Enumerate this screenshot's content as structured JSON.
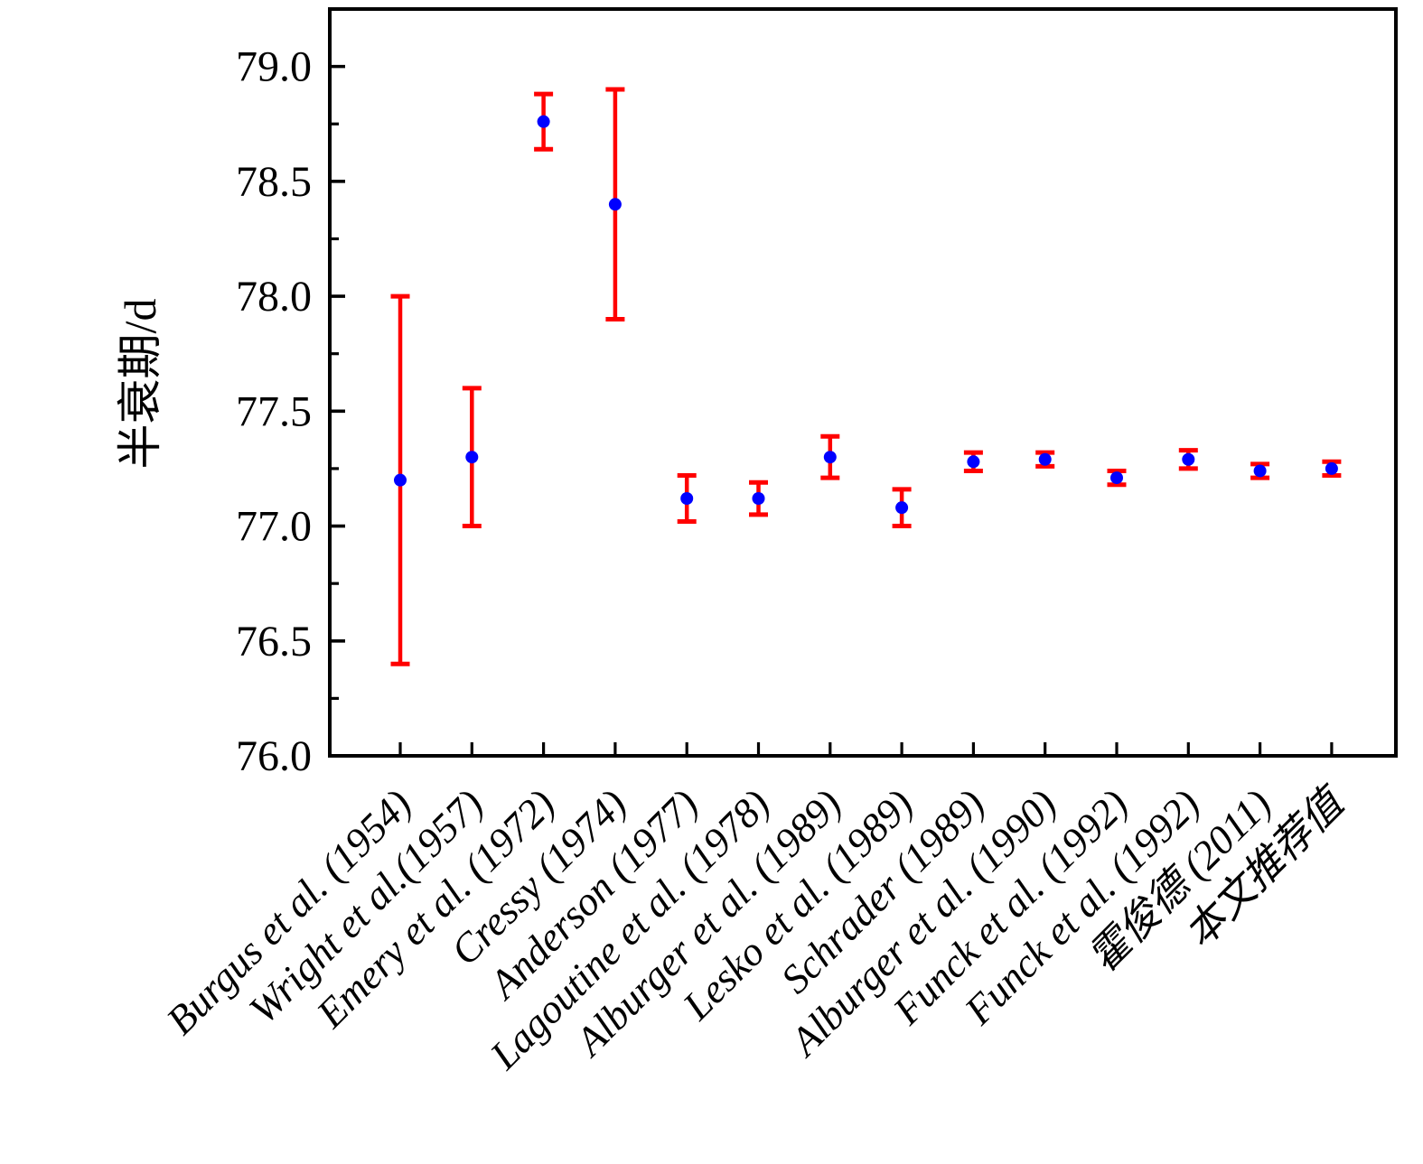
{
  "chart_data": {
    "type": "scatter",
    "title": "",
    "xlabel": "",
    "ylabel": "半衰期/d",
    "grid": false,
    "legend": null,
    "ylim": [
      76.0,
      79.25
    ],
    "yticks": [
      "76.0",
      "76.5",
      "77.0",
      "77.5",
      "78.0",
      "78.5",
      "79.0"
    ],
    "yticks_minor": [
      76.25,
      76.75,
      77.25,
      77.75,
      78.25,
      78.75
    ],
    "categories": [
      "Burgus et al. (1954)",
      "Wright et al.(1957)",
      "Emery et al. (1972)",
      "Cressy (1974)",
      "Anderson (1977)",
      "Lagoutine et al. (1978)",
      "Alburger et al. (1989)",
      "Lesko et al. (1989)",
      "Schrader (1989)",
      "Alburger et al. (1990)",
      "Funck et al. (1992)",
      "Funck et al. (1992)",
      "霍俊德 (2011)",
      "本文推荐值"
    ],
    "values": [
      77.2,
      77.3,
      78.76,
      78.4,
      77.12,
      77.12,
      77.3,
      77.08,
      77.28,
      77.29,
      77.21,
      77.29,
      77.24,
      77.25
    ],
    "errors": [
      0.8,
      0.3,
      0.12,
      0.5,
      0.1,
      0.07,
      0.09,
      0.08,
      0.04,
      0.03,
      0.03,
      0.04,
      0.03,
      0.03
    ],
    "marker": "circle",
    "colors": {
      "point": "#0000ff",
      "error_bar": "#ff0000",
      "axis": "#000000",
      "text": "#000000",
      "background": "#ffffff"
    }
  }
}
